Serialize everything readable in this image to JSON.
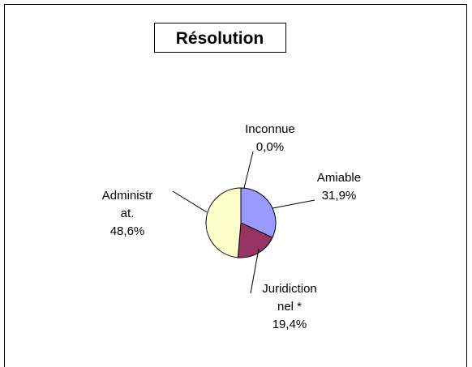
{
  "chart_data": {
    "type": "pie",
    "title": "Résolution",
    "categories": [
      "Inconnue",
      "Amiable",
      "Juridiction\nnel *",
      "Administr\nat."
    ],
    "values": [
      0.0,
      31.9,
      19.4,
      48.6
    ],
    "value_labels": [
      "0,0%",
      "31,9%",
      "19,4%",
      "48,6%"
    ],
    "colors": [
      "#ccffff",
      "#9999ff",
      "#993366",
      "#ffffcc"
    ]
  }
}
